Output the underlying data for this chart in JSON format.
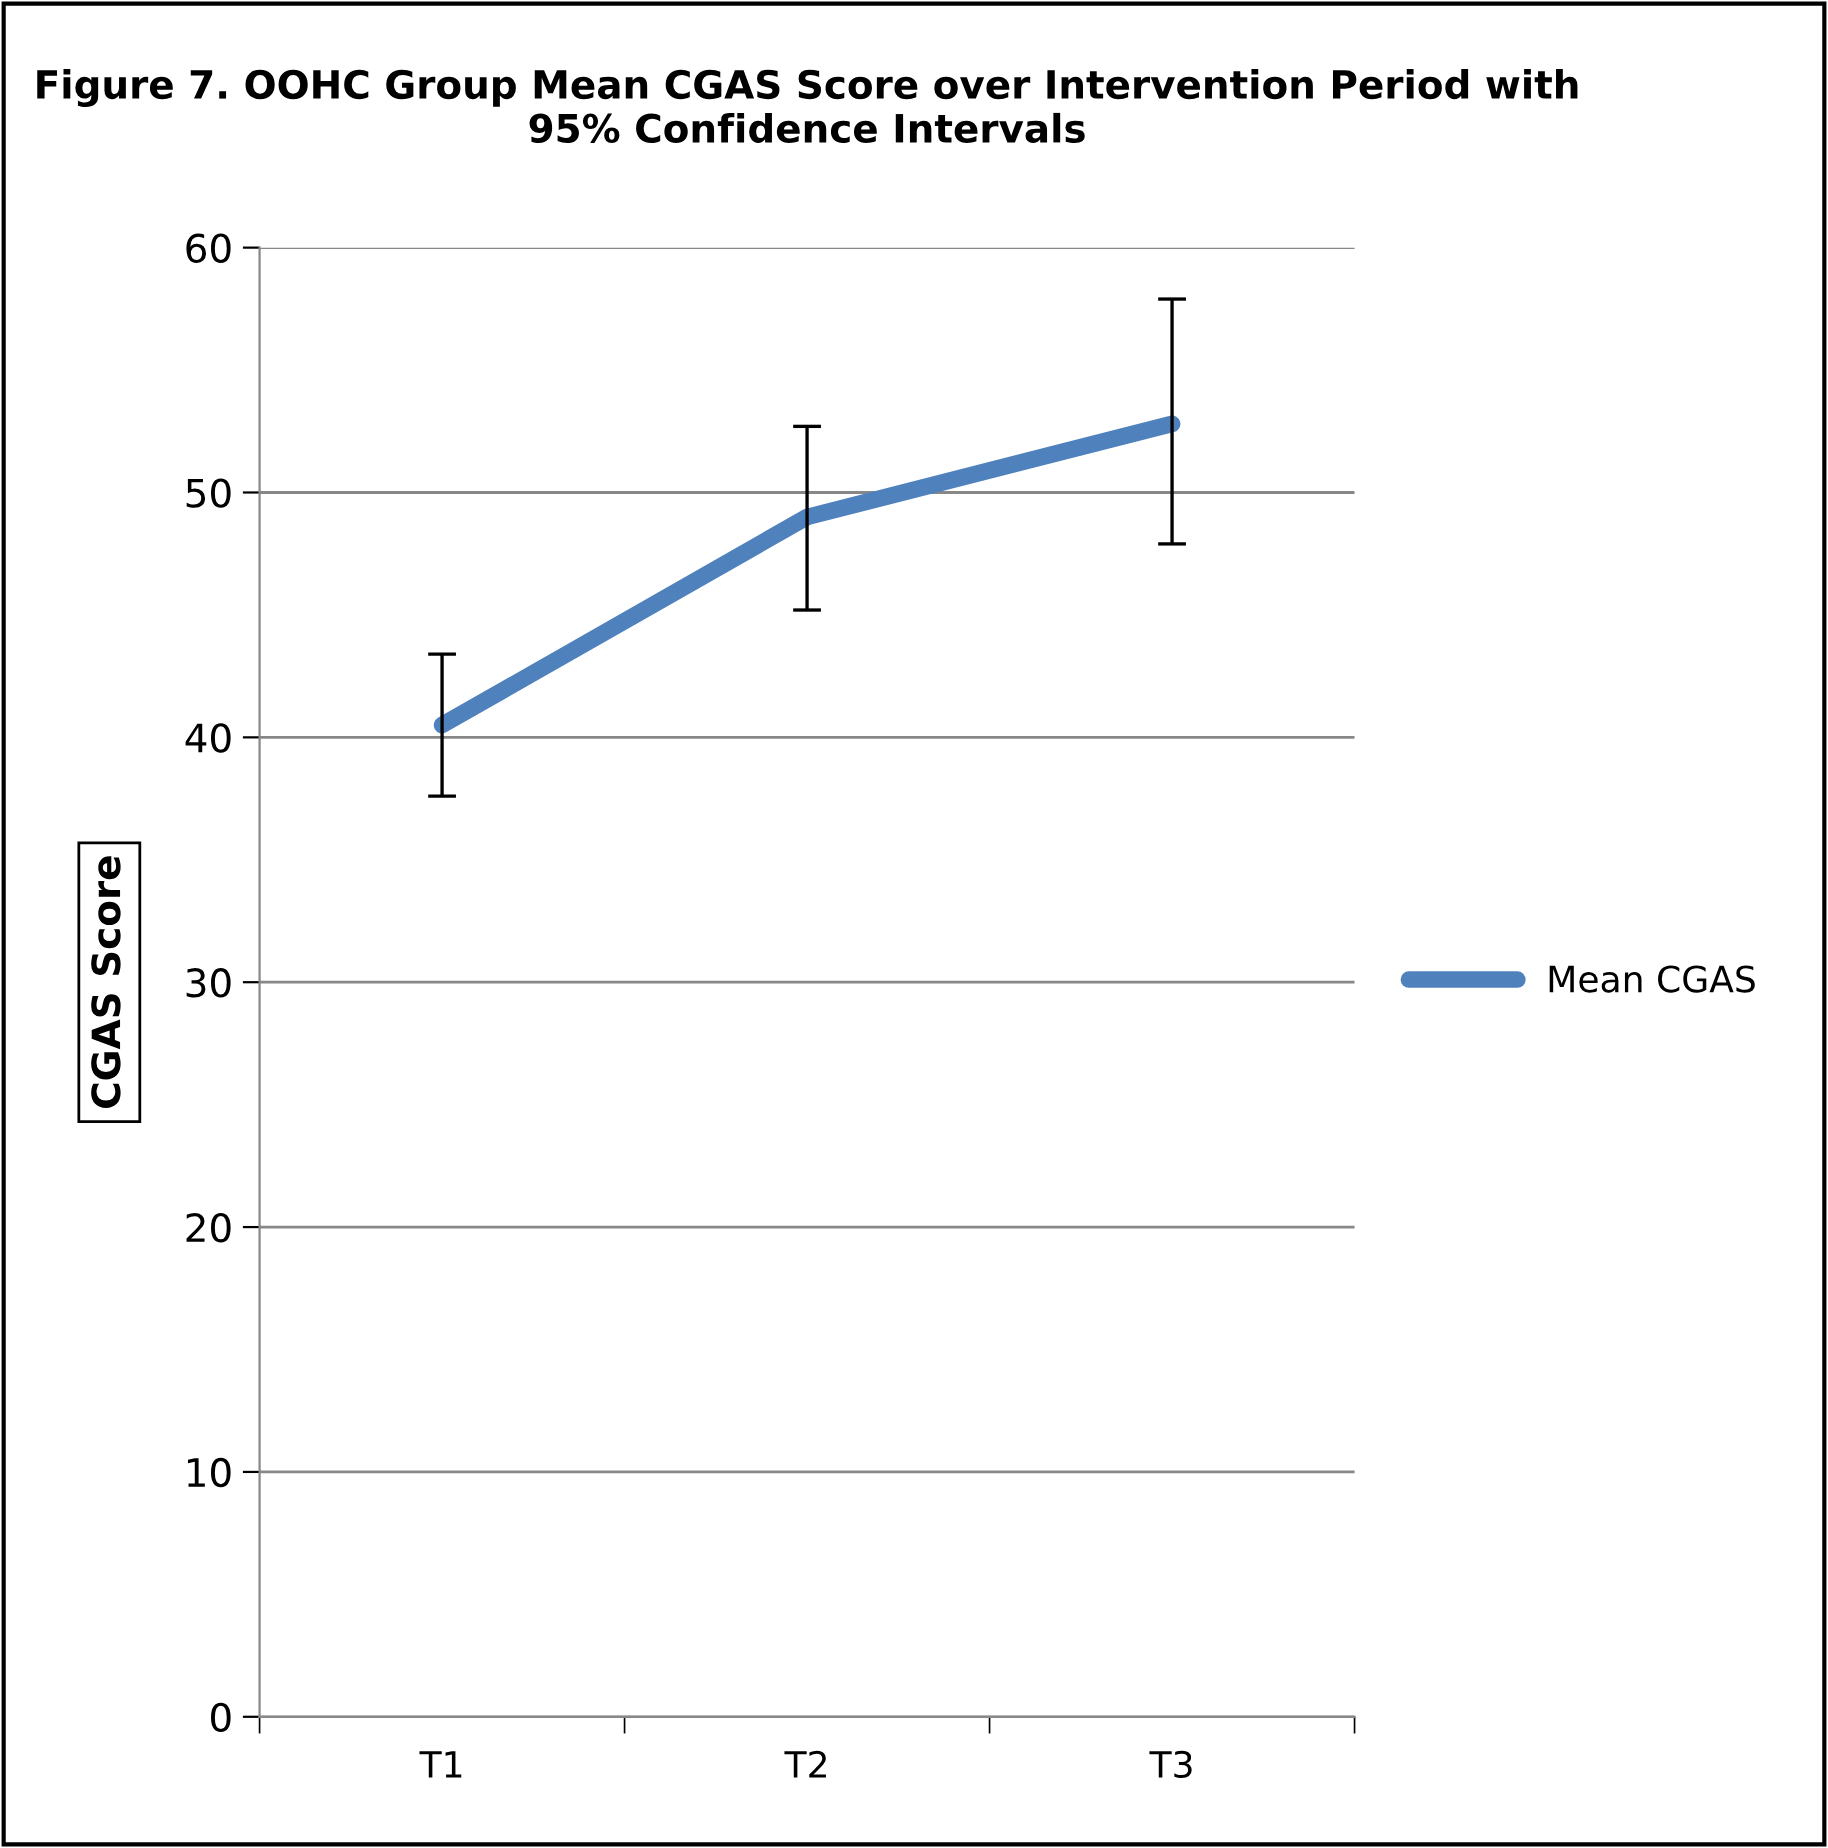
{
  "chart_data": {
    "type": "line",
    "title": "Figure 7. OOHC Group Mean CGAS Score over Intervention Period with 95% Confidence Intervals",
    "ylabel": "CGAS Score",
    "categories": [
      "T1",
      "T2",
      "T3"
    ],
    "series": [
      {
        "name": "Mean CGAS",
        "color": "#4f81bd",
        "values": [
          40.5,
          49.0,
          52.8
        ],
        "errors": [
          [
            37.6,
            43.4
          ],
          [
            45.2,
            52.7
          ],
          [
            47.9,
            57.9
          ]
        ]
      }
    ],
    "ylim": [
      0,
      60
    ],
    "yticks": [
      0,
      10,
      20,
      30,
      40,
      50,
      60
    ],
    "grid": "y",
    "legend": "right",
    "marker": "none",
    "line_style": "solid"
  }
}
